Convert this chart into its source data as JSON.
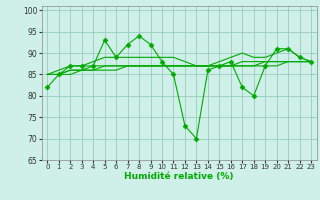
{
  "xlabel": "Humidité relative (%)",
  "xlim": [
    -0.5,
    23.5
  ],
  "ylim": [
    65,
    101
  ],
  "yticks": [
    65,
    70,
    75,
    80,
    85,
    90,
    95,
    100
  ],
  "xticks": [
    0,
    1,
    2,
    3,
    4,
    5,
    6,
    7,
    8,
    9,
    10,
    11,
    12,
    13,
    14,
    15,
    16,
    17,
    18,
    19,
    20,
    21,
    22,
    23
  ],
  "bg_color": "#cff0e8",
  "grid_color": "#99ccbb",
  "line_color": "#00aa00",
  "s1": [
    82,
    85,
    87,
    87,
    87,
    93,
    89,
    92,
    94,
    92,
    88,
    85,
    73,
    70,
    86,
    87,
    88,
    82,
    80,
    87,
    91,
    91,
    89,
    88
  ],
  "s2": [
    85,
    86,
    87,
    87,
    88,
    89,
    89,
    89,
    89,
    89,
    89,
    89,
    88,
    87,
    87,
    88,
    89,
    90,
    89,
    89,
    90,
    91,
    89,
    88
  ],
  "s3": [
    85,
    85,
    86,
    86,
    87,
    87,
    87,
    87,
    87,
    87,
    87,
    87,
    87,
    87,
    87,
    87,
    87,
    88,
    88,
    88,
    88,
    88,
    88,
    88
  ],
  "s4": [
    85,
    85,
    86,
    86,
    86,
    87,
    87,
    87,
    87,
    87,
    87,
    87,
    87,
    87,
    87,
    87,
    87,
    87,
    87,
    88,
    88,
    88,
    88,
    88
  ],
  "s5": [
    85,
    85,
    85,
    86,
    86,
    86,
    86,
    87,
    87,
    87,
    87,
    87,
    87,
    87,
    87,
    87,
    87,
    87,
    87,
    87,
    87,
    88,
    88,
    88
  ]
}
